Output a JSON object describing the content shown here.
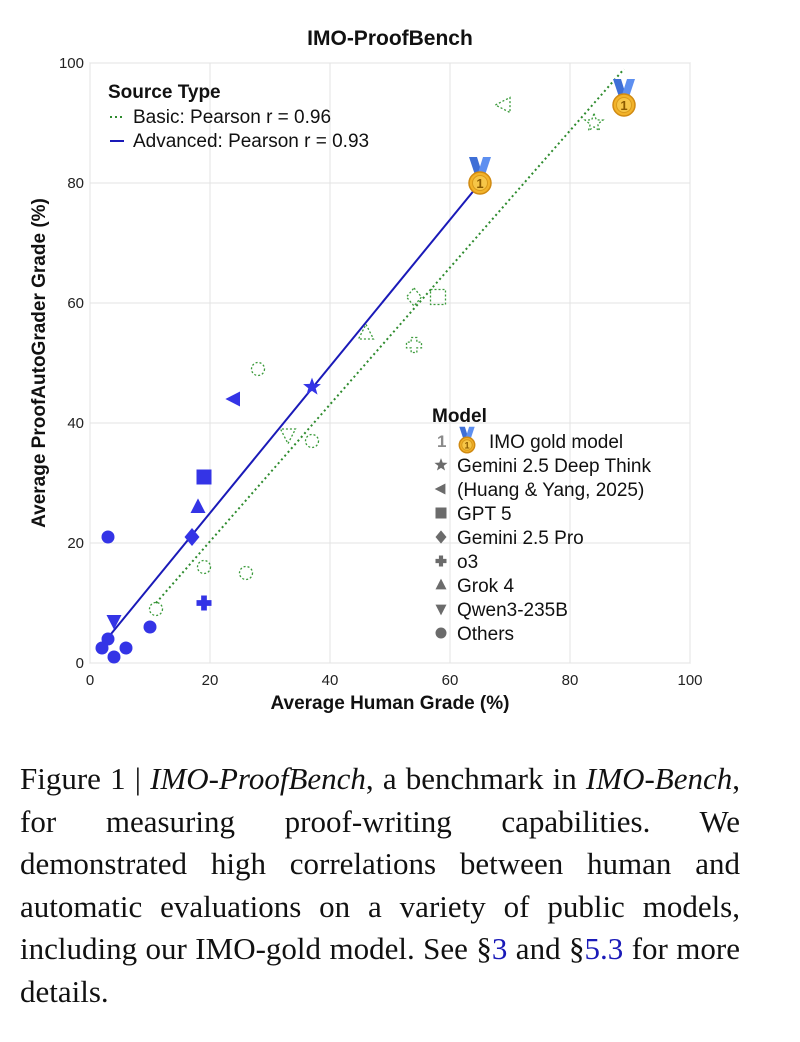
{
  "chart_data": {
    "type": "scatter",
    "title": "IMO-ProofBench",
    "xlabel": "Average Human Grade (%)",
    "ylabel": "Average ProofAutoGrader Grade (%)",
    "xlim": [
      0,
      100
    ],
    "ylim": [
      0,
      100
    ],
    "x_ticks": [
      "0",
      "20",
      "40",
      "60",
      "80",
      "100"
    ],
    "y_ticks": [
      "0",
      "20",
      "40",
      "60",
      "80",
      "100"
    ],
    "grid": true,
    "source_legend": {
      "title": "Source Type",
      "placement": "top-left",
      "entries": [
        {
          "label": "Basic: Pearson r = 0.96",
          "style": "dotted",
          "color": "#2e8b2e"
        },
        {
          "label": "Advanced: Pearson r = 0.93",
          "style": "solid",
          "color": "#1a1ab8"
        }
      ]
    },
    "model_legend": {
      "title": "Model",
      "placement": "center-right",
      "entries": [
        {
          "marker": "medal",
          "label": "IMO gold model"
        },
        {
          "marker": "star",
          "label": "Gemini 2.5 Deep Think"
        },
        {
          "marker": "triangle-left",
          "label": "(Huang & Yang, 2025)"
        },
        {
          "marker": "square",
          "label": "GPT 5"
        },
        {
          "marker": "diamond",
          "label": "Gemini 2.5 Pro"
        },
        {
          "marker": "plus",
          "label": "o3"
        },
        {
          "marker": "triangle-up",
          "label": "Grok 4"
        },
        {
          "marker": "triangle-down",
          "label": "Qwen3-235B"
        },
        {
          "marker": "circle",
          "label": "Others"
        }
      ],
      "medal_number": "1"
    },
    "series": [
      {
        "name": "Basic",
        "color": "#2e8b2e",
        "fit_line": {
          "x": [
            11,
            89
          ],
          "y": [
            10,
            99
          ]
        },
        "points": [
          {
            "model": "IMO gold model",
            "marker": "medal",
            "x": 89,
            "y": 93
          },
          {
            "model": "Gemini 2.5 Deep Think",
            "marker": "star",
            "x": 84,
            "y": 90
          },
          {
            "model": "(Huang & Yang, 2025)",
            "marker": "triangle-left",
            "x": 69,
            "y": 93
          },
          {
            "model": "GPT 5",
            "marker": "square",
            "x": 58,
            "y": 61
          },
          {
            "model": "Gemini 2.5 Pro",
            "marker": "diamond",
            "x": 54,
            "y": 61
          },
          {
            "model": "o3",
            "marker": "plus",
            "x": 54,
            "y": 53
          },
          {
            "model": "Grok 4",
            "marker": "triangle-up",
            "x": 46,
            "y": 55
          },
          {
            "model": "Others",
            "marker": "circle",
            "x": 28,
            "y": 49
          },
          {
            "model": "Others",
            "marker": "circle",
            "x": 37,
            "y": 37
          },
          {
            "model": "Qwen3-235B",
            "marker": "triangle-down",
            "x": 33,
            "y": 38
          },
          {
            "model": "Others",
            "marker": "circle",
            "x": 19,
            "y": 16
          },
          {
            "model": "Others",
            "marker": "circle",
            "x": 26,
            "y": 15
          },
          {
            "model": "Others",
            "marker": "circle",
            "x": 11,
            "y": 9
          }
        ]
      },
      {
        "name": "Advanced",
        "color": "#1a1ab8",
        "fit_line": {
          "x": [
            2,
            65
          ],
          "y": [
            3,
            80
          ]
        },
        "points": [
          {
            "model": "IMO gold model",
            "marker": "medal",
            "x": 65,
            "y": 80
          },
          {
            "model": "Gemini 2.5 Deep Think",
            "marker": "star",
            "x": 37,
            "y": 46
          },
          {
            "model": "(Huang & Yang, 2025)",
            "marker": "triangle-left",
            "x": 24,
            "y": 44
          },
          {
            "model": "GPT 5",
            "marker": "square",
            "x": 19,
            "y": 31
          },
          {
            "model": "Grok 4",
            "marker": "triangle-up",
            "x": 18,
            "y": 26
          },
          {
            "model": "Gemini 2.5 Pro",
            "marker": "diamond",
            "x": 17,
            "y": 21
          },
          {
            "model": "o3",
            "marker": "plus",
            "x": 19,
            "y": 10
          },
          {
            "model": "Qwen3-235B",
            "marker": "triangle-down",
            "x": 4,
            "y": 7
          },
          {
            "model": "Others",
            "marker": "circle",
            "x": 3,
            "y": 21
          },
          {
            "model": "Others",
            "marker": "circle",
            "x": 10,
            "y": 6
          },
          {
            "model": "Others",
            "marker": "circle",
            "x": 3,
            "y": 4
          },
          {
            "model": "Others",
            "marker": "circle",
            "x": 2,
            "y": 2.5
          },
          {
            "model": "Others",
            "marker": "circle",
            "x": 6,
            "y": 2.5
          },
          {
            "model": "Others",
            "marker": "circle",
            "x": 4,
            "y": 1
          }
        ]
      }
    ]
  },
  "caption": {
    "figure_label": "Figure 1 | ",
    "benchmark_name": "IMO-ProofBench",
    "text_1": ", a benchmark in ",
    "suite_name": "IMO-Bench",
    "text_2": ", for measuring proof-writing capabilities. We demonstrated high correlations between human and automatic evaluations on a variety of public models, including our IMO-gold model. See §",
    "ref_1": "3",
    "text_3": " and §",
    "ref_2": "5.3",
    "text_4": " for more details."
  }
}
